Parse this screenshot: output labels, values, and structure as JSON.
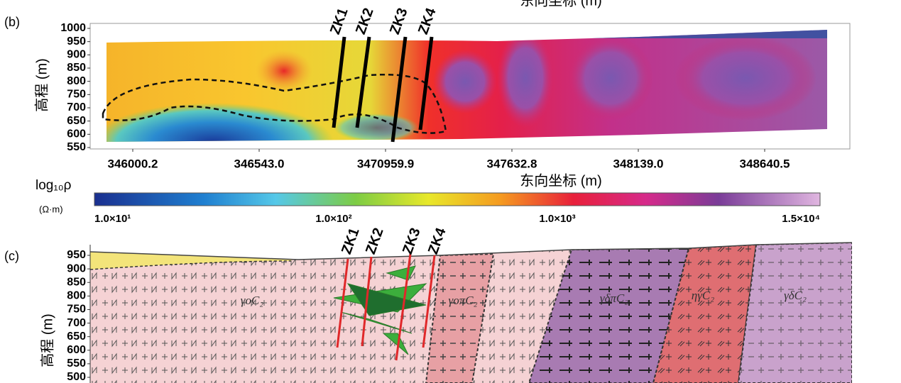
{
  "panel_b": {
    "label": "(b)",
    "top_axis_title": "东向坐标 (m)",
    "y_axis_title": "高程 (m)",
    "yticks": [
      1000,
      950,
      900,
      850,
      800,
      750,
      700,
      650,
      600,
      550
    ],
    "xticks": [
      "346000.2",
      "346543.0",
      "3470959.9",
      "347632.8",
      "348139.0",
      "348640.5"
    ],
    "x_axis_title": "东向坐标 (m)",
    "boreholes": [
      "ZK1",
      "ZK2",
      "ZK3",
      "ZK4"
    ]
  },
  "colorbar": {
    "title": "log₁₀ρ",
    "unit": "(Ω·m)",
    "ticks": [
      "1.0×10¹",
      "1.0×10²",
      "1.0×10³",
      "1.5×10⁴"
    ]
  },
  "panel_c": {
    "label": "(c)",
    "y_axis_title": "高程 (m)",
    "yticks": [
      950,
      900,
      850,
      800,
      750,
      700,
      650,
      600,
      550,
      500
    ],
    "boreholes": [
      "ZK1",
      "ZK2",
      "ZK3",
      "ZK4"
    ],
    "units": [
      "γoC₂",
      "γoπC₂",
      "γδπC₂",
      "ηγC₂",
      "γδC₂"
    ]
  }
}
